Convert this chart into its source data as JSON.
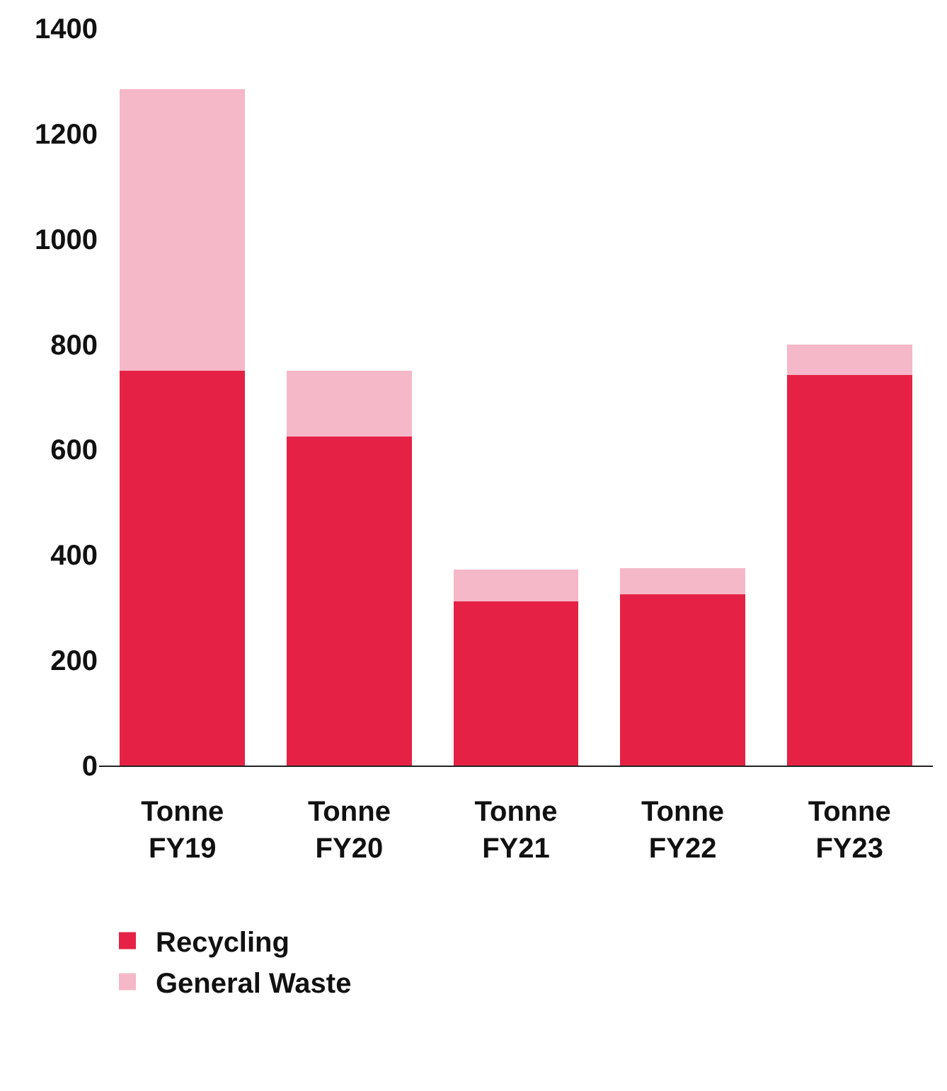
{
  "chart_data": {
    "type": "bar",
    "stacked": true,
    "categories": [
      "Tonne\nFY19",
      "Tonne\nFY20",
      "Tonne\nFY21",
      "Tonne\nFY22",
      "Tonne\nFY23"
    ],
    "series": [
      {
        "name": "Recycling",
        "color": "#e52245",
        "values": [
          750,
          625,
          312,
          325,
          742
        ]
      },
      {
        "name": "General Waste",
        "color": "#f5b8c9",
        "values": [
          535,
          125,
          60,
          50,
          58
        ]
      }
    ],
    "ylim": [
      0,
      1400
    ],
    "yticks": [
      0,
      200,
      400,
      600,
      800,
      1000,
      1200,
      1400
    ],
    "legend": "bottom left"
  }
}
